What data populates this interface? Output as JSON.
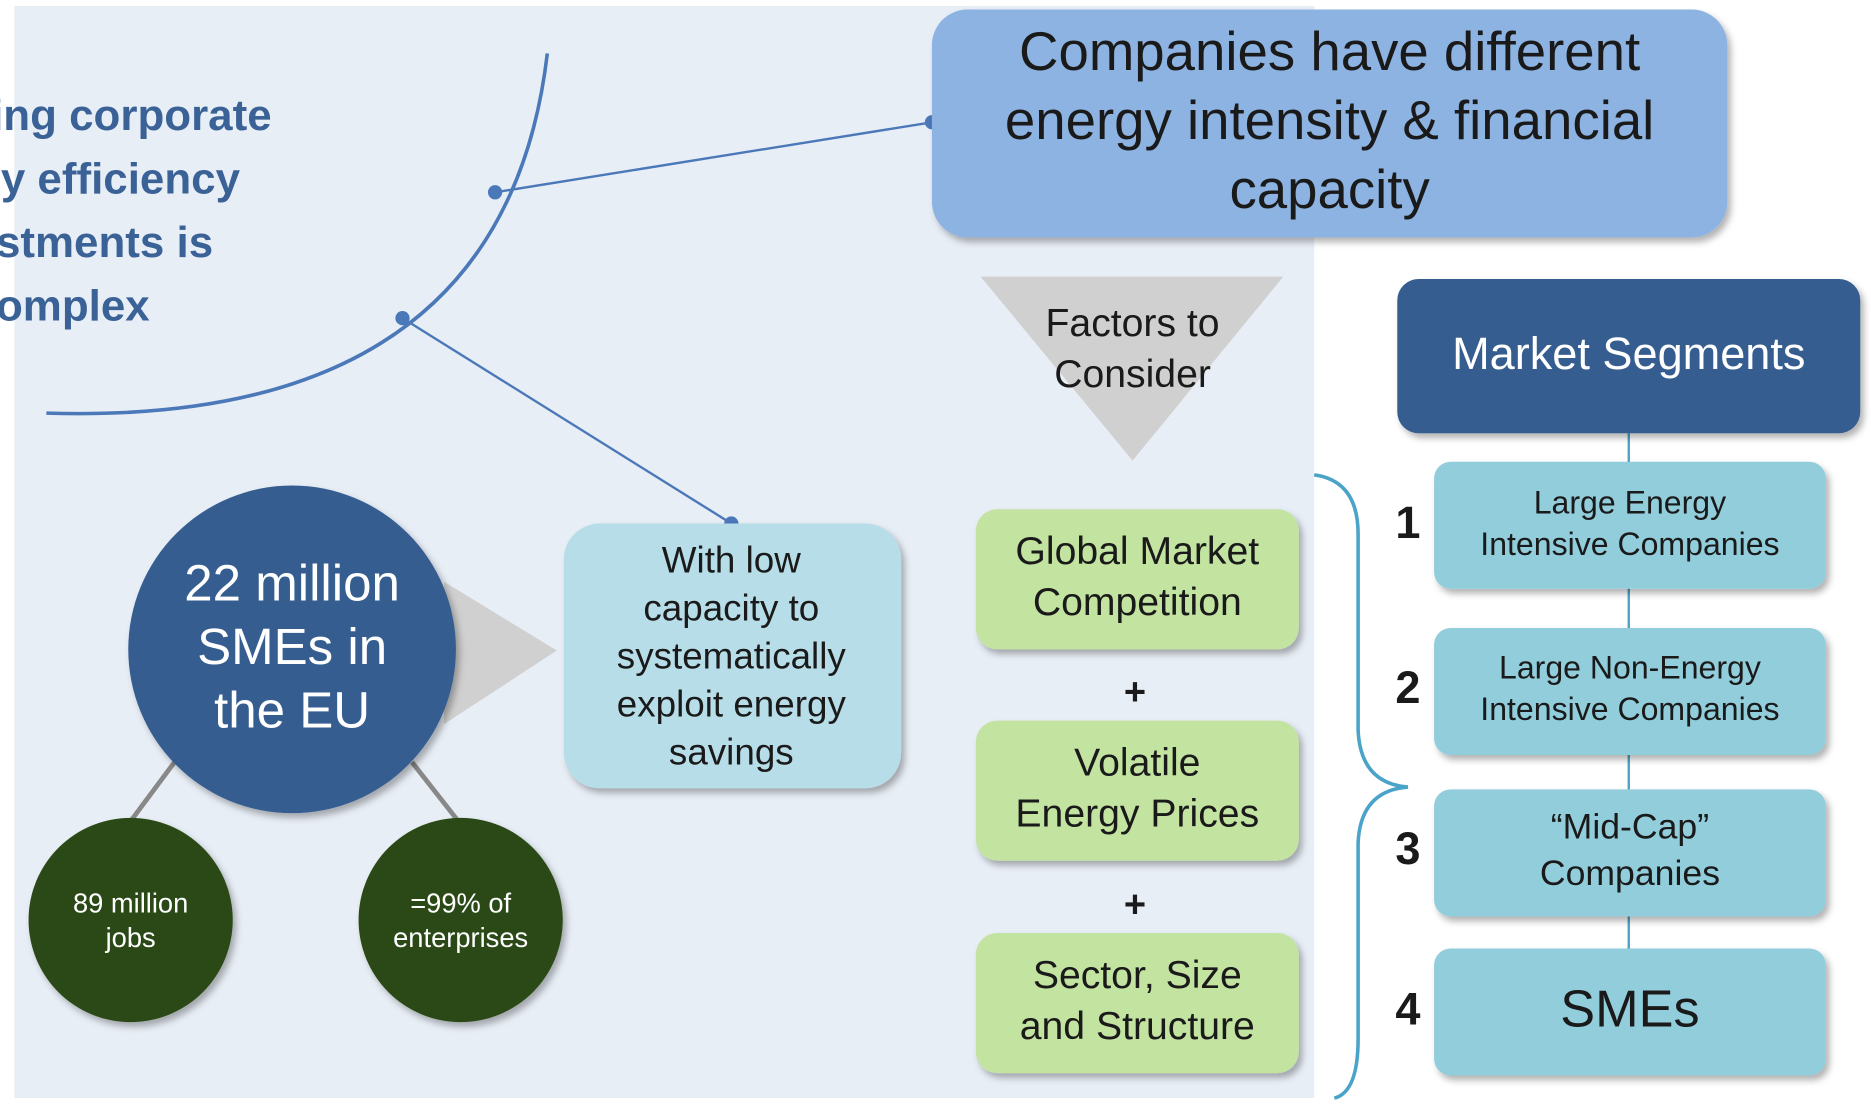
{
  "title": [
    "Financing corporate",
    "energy efficiency",
    "investments is",
    "complex"
  ],
  "header": [
    "Companies have different",
    "energy intensity & financial",
    "capacity"
  ],
  "sme": {
    "label": [
      "22 million",
      "SMEs in",
      "the EU"
    ],
    "children": [
      [
        "89 million",
        "jobs"
      ],
      [
        "=99% of",
        "enterprises"
      ]
    ]
  },
  "callout": [
    "With low",
    "capacity to",
    "systematically",
    "exploit energy",
    "savings"
  ],
  "factors": {
    "heading": [
      "Factors to",
      "Consider"
    ],
    "items": [
      [
        "Global Market",
        "Competition"
      ],
      [
        "Volatile",
        "Energy Prices"
      ],
      [
        "Sector, Size",
        "and Structure"
      ]
    ],
    "operators": [
      "+",
      "+"
    ]
  },
  "segments": {
    "heading": [
      "Market Segments"
    ],
    "items": [
      {
        "number": "1",
        "label": [
          "Large Energy",
          "Intensive Companies"
        ]
      },
      {
        "number": "2",
        "label": [
          "Large Non-Energy",
          "Intensive Companies"
        ]
      },
      {
        "number": "3",
        "label": [
          "“Mid-Cap”",
          "Companies"
        ]
      },
      {
        "number": "4",
        "label": [
          "SMEs"
        ]
      }
    ]
  }
}
